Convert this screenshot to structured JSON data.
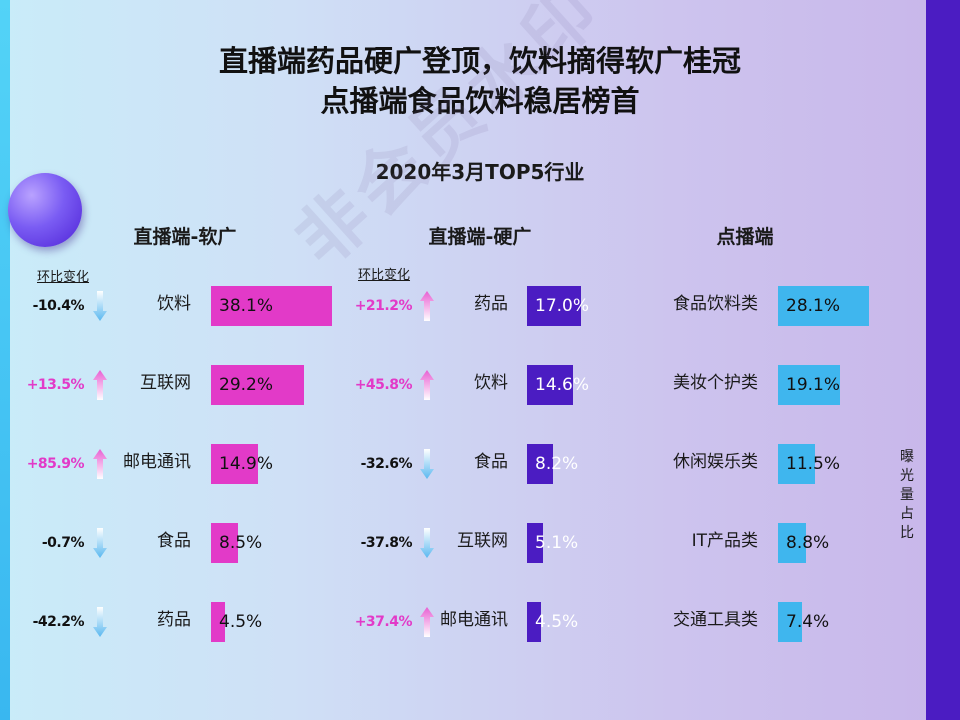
{
  "headline": {
    "line1": "直播端药品硬广登顶，饮料摘得软广桂冠",
    "line2": "点播端食品饮料稳居榜首"
  },
  "subtitle": "2020年3月TOP5行业",
  "side_label": "曝光量占比",
  "watermark_text": "非会员水印",
  "colors": {
    "soft": "#e23ac8",
    "hard": "#4b1cc2",
    "vod": "#3fb6ee",
    "up": "#e23ac8",
    "down": "#111111"
  },
  "chart_data": [
    {
      "type": "bar",
      "title": "直播端-软广",
      "change_header": "环比变化",
      "unit": "%",
      "xlim": [
        0,
        38.1
      ],
      "categories": [
        "饮料",
        "互联网",
        "邮电通讯",
        "食品",
        "药品"
      ],
      "values": [
        38.1,
        29.2,
        14.9,
        8.5,
        4.5
      ],
      "value_labels": [
        "38.1%",
        "29.2%",
        "14.9%",
        "8.5%",
        "4.5%"
      ],
      "changes": [
        "-10.4%",
        "+13.5%",
        "+85.9%",
        "-0.7%",
        "-42.2%"
      ],
      "directions": [
        "down",
        "up",
        "up",
        "down",
        "down"
      ]
    },
    {
      "type": "bar",
      "title": "直播端-硬广",
      "change_header": "环比变化",
      "unit": "%",
      "xlim": [
        0,
        38.1
      ],
      "categories": [
        "药品",
        "饮料",
        "食品",
        "互联网",
        "邮电通讯"
      ],
      "values": [
        17.0,
        14.6,
        8.2,
        5.1,
        4.5
      ],
      "value_labels": [
        "17.0%",
        "14.6%",
        "8.2%",
        "5.1%",
        "4.5%"
      ],
      "changes": [
        "+21.2%",
        "+45.8%",
        "-32.6%",
        "-37.8%",
        "+37.4%"
      ],
      "directions": [
        "up",
        "up",
        "down",
        "down",
        "up"
      ]
    },
    {
      "type": "bar",
      "title": "点播端",
      "unit": "%",
      "xlim": [
        0,
        28.1
      ],
      "categories": [
        "食品饮料类",
        "美妆个护类",
        "休闲娱乐类",
        "IT产品类",
        "交通工具类"
      ],
      "values": [
        28.1,
        19.1,
        11.5,
        8.8,
        7.4
      ],
      "value_labels": [
        "28.1%",
        "19.1%",
        "11.5%",
        "8.8%",
        "7.4%"
      ]
    }
  ]
}
